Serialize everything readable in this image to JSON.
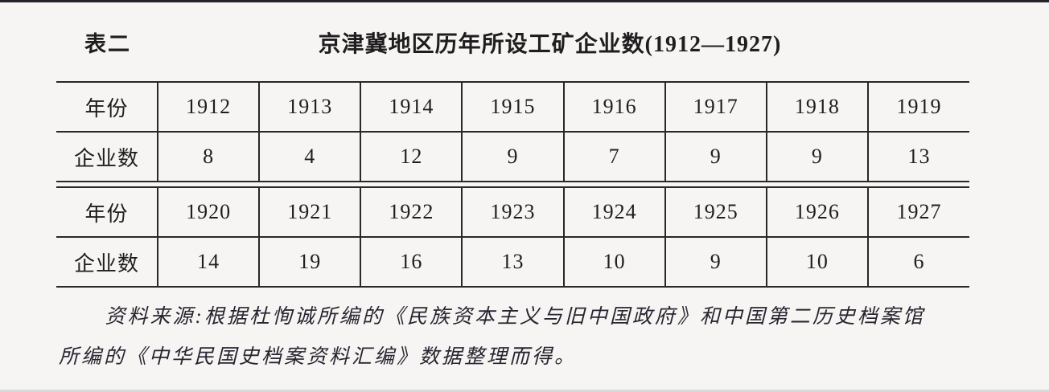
{
  "header": {
    "table_label": "表二",
    "title": "京津冀地区历年所设工矿企业数(1912—1927)"
  },
  "table": {
    "row_header_year": "年份",
    "row_header_count": "企业数",
    "halves": [
      {
        "years": [
          "1912",
          "1913",
          "1914",
          "1915",
          "1916",
          "1917",
          "1918",
          "1919"
        ],
        "counts": [
          "8",
          "4",
          "12",
          "9",
          "7",
          "9",
          "9",
          "13"
        ]
      },
      {
        "years": [
          "1920",
          "1921",
          "1922",
          "1923",
          "1924",
          "1925",
          "1926",
          "1927"
        ],
        "counts": [
          "14",
          "19",
          "16",
          "13",
          "10",
          "9",
          "10",
          "6"
        ]
      }
    ]
  },
  "source_note": {
    "line1": "资料来源:根据杜恂诚所编的《民族资本主义与旧中国政府》和中国第二历史档案馆",
    "line2": "所编的《中华民国史档案资料汇编》数据整理而得。"
  },
  "chart_data": {
    "type": "table",
    "title": "京津冀地区历年所设工矿企业数(1912—1927)",
    "columns": [
      "年份",
      "企业数"
    ],
    "x": [
      1912,
      1913,
      1914,
      1915,
      1916,
      1917,
      1918,
      1919,
      1920,
      1921,
      1922,
      1923,
      1924,
      1925,
      1926,
      1927
    ],
    "values": [
      8,
      4,
      12,
      9,
      7,
      9,
      9,
      13,
      14,
      19,
      16,
      13,
      10,
      9,
      10,
      6
    ]
  }
}
